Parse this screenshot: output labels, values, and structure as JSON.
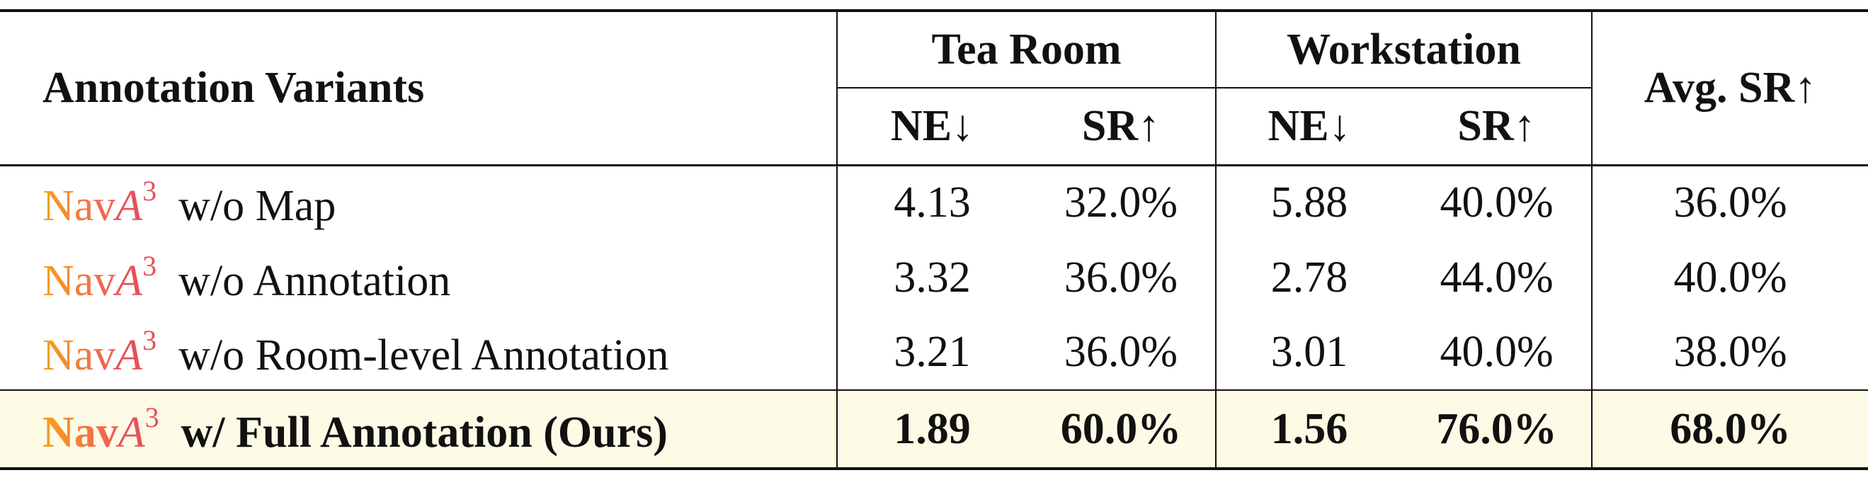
{
  "table": {
    "header": {
      "variants": "Annotation Variants",
      "group1": "Tea Room",
      "group2": "Workstation",
      "avg": "Avg. SR↑",
      "ne": "NE↓",
      "sr": "SR↑"
    },
    "rows": [
      {
        "prefix": "Nav",
        "letter": "A",
        "sup": "3",
        "variant": "w/o Map",
        "cells": [
          "4.13",
          "32.0%",
          "5.88",
          "40.0%",
          "36.0%"
        ]
      },
      {
        "prefix": "Nav",
        "letter": "A",
        "sup": "3",
        "variant": "w/o Annotation",
        "cells": [
          "3.32",
          "36.0%",
          "2.78",
          "44.0%",
          "40.0%"
        ]
      },
      {
        "prefix": "Nav",
        "letter": "A",
        "sup": "3",
        "variant": "w/o Room-level Annotation",
        "cells": [
          "3.21",
          "36.0%",
          "3.01",
          "40.0%",
          "38.0%"
        ]
      },
      {
        "prefix": "Nav",
        "letter": "A",
        "sup": "3",
        "variant": "w/ Full Annotation (Ours)",
        "cells": [
          "1.89",
          "60.0%",
          "1.56",
          "76.0%",
          "68.0%"
        ]
      }
    ]
  }
}
